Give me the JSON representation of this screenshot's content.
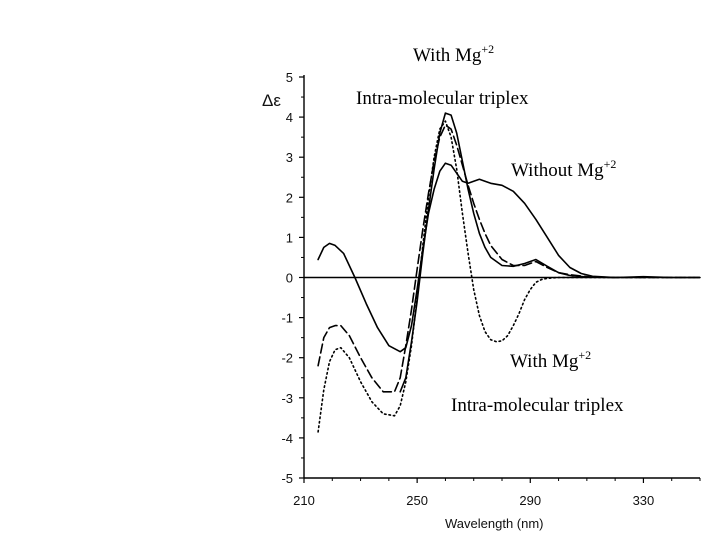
{
  "chart_data": {
    "type": "line",
    "title": "",
    "xlabel": "Wavelength (nm)",
    "ylabel": "Δε",
    "xlim": [
      210,
      350
    ],
    "ylim": [
      -5,
      5
    ],
    "xticks": [
      210,
      250,
      290,
      330
    ],
    "yticks": [
      5,
      4,
      3,
      2,
      1,
      0,
      -1,
      -2,
      -3,
      -4,
      -5
    ],
    "zero_line": true,
    "grid": false,
    "series": [
      {
        "name": "Without Mg+2",
        "style": "solid",
        "x": [
          215,
          217,
          219,
          221,
          224,
          228,
          232,
          236,
          240,
          244,
          246,
          248,
          250,
          252,
          254,
          256,
          258,
          260,
          262,
          264,
          266,
          268,
          270,
          272,
          274,
          276,
          280,
          284,
          288,
          292,
          296,
          300,
          304,
          308,
          312,
          320,
          330,
          340,
          350
        ],
        "y": [
          0.45,
          0.75,
          0.85,
          0.8,
          0.6,
          0.0,
          -0.65,
          -1.25,
          -1.7,
          -1.85,
          -1.75,
          -1.2,
          -0.3,
          0.7,
          1.6,
          2.2,
          2.65,
          2.85,
          2.8,
          2.6,
          2.4,
          2.35,
          2.4,
          2.45,
          2.4,
          2.35,
          2.3,
          2.15,
          1.85,
          1.45,
          1.0,
          0.55,
          0.25,
          0.1,
          0.03,
          0.0,
          0.02,
          0.0,
          0.0
        ]
      },
      {
        "name": "With Mg+2 Intra-molecular triplex (dashed)",
        "style": "dashed",
        "x": [
          215,
          217,
          219,
          221,
          223,
          226,
          230,
          234,
          238,
          242,
          244,
          246,
          248,
          250,
          252,
          254,
          256,
          258,
          260,
          262,
          264,
          266,
          268,
          270,
          272,
          274,
          276,
          280,
          284,
          288,
          292,
          296,
          300,
          304,
          310,
          320,
          330,
          350
        ],
        "y": [
          -2.2,
          -1.5,
          -1.25,
          -1.2,
          -1.2,
          -1.45,
          -2.0,
          -2.5,
          -2.85,
          -2.85,
          -2.5,
          -1.7,
          -0.8,
          0.2,
          1.2,
          2.1,
          2.9,
          3.5,
          3.8,
          3.7,
          3.3,
          2.8,
          2.3,
          1.85,
          1.45,
          1.1,
          0.8,
          0.45,
          0.3,
          0.3,
          0.4,
          0.25,
          0.12,
          0.07,
          0.02,
          0.0,
          0.0,
          0.0
        ]
      },
      {
        "name": "Without Mg+2 peak (solid, upper)",
        "style": "solid",
        "x": [
          244,
          246,
          248,
          250,
          252,
          254,
          256,
          258,
          260,
          262,
          264,
          266,
          268,
          270,
          272,
          274,
          276,
          280,
          284,
          288,
          292,
          296,
          300,
          304,
          310,
          320
        ],
        "y": [
          -2.85,
          -2.5,
          -1.6,
          -0.6,
          0.6,
          1.7,
          2.7,
          3.6,
          4.1,
          4.05,
          3.6,
          2.9,
          2.2,
          1.6,
          1.1,
          0.75,
          0.5,
          0.3,
          0.28,
          0.35,
          0.45,
          0.28,
          0.12,
          0.05,
          0.01,
          0.0
        ]
      },
      {
        "name": "With Mg+2 Intra-molecular triplex (dotted)",
        "style": "dotted",
        "x": [
          215,
          217,
          219,
          221,
          223,
          226,
          230,
          234,
          238,
          242,
          244,
          246,
          248,
          250,
          252,
          254,
          256,
          258,
          260,
          262,
          264,
          266,
          268,
          270,
          272,
          274,
          276,
          278,
          280,
          282,
          284,
          286,
          288,
          290,
          292,
          294,
          296,
          300,
          304,
          308,
          312,
          320,
          330,
          350
        ],
        "y": [
          -3.85,
          -2.8,
          -2.1,
          -1.8,
          -1.75,
          -2.0,
          -2.6,
          -3.1,
          -3.4,
          -3.45,
          -3.2,
          -2.6,
          -1.7,
          -0.5,
          0.8,
          2.0,
          3.0,
          3.7,
          3.9,
          3.5,
          2.7,
          1.6,
          0.6,
          -0.3,
          -0.95,
          -1.35,
          -1.55,
          -1.6,
          -1.58,
          -1.45,
          -1.2,
          -0.9,
          -0.55,
          -0.3,
          -0.12,
          -0.05,
          -0.02,
          0.0,
          0.0,
          0.0,
          0.0,
          0.0,
          0.0,
          0.0
        ]
      }
    ],
    "annotations": [
      {
        "id": "top",
        "text": "With Mg",
        "sup": "+2"
      },
      {
        "id": "top2",
        "text": "Intra-molecular triplex"
      },
      {
        "id": "right",
        "text": "Without Mg",
        "sup": "+2"
      },
      {
        "id": "bottom",
        "text": "With Mg",
        "sup": "+2"
      },
      {
        "id": "bottom2",
        "text": "Intra-molecular triplex"
      }
    ]
  }
}
